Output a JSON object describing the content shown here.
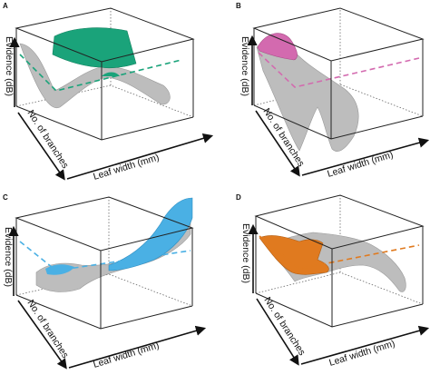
{
  "panels": [
    {
      "id": "A",
      "letter": "A",
      "color": "#1aa37a",
      "ylabel": "Evidence (dB)",
      "zlabel": "No. of branches",
      "xlabel": "Leaf width (mm)"
    },
    {
      "id": "B",
      "letter": "B",
      "color": "#d36aaf",
      "ylabel": "Evidence (dB)",
      "zlabel": "No. of branches",
      "xlabel": "Leaf width (mm)"
    },
    {
      "id": "C",
      "letter": "C",
      "color": "#4ab0e4",
      "ylabel": "Evidence (dB)",
      "zlabel": "No. of branches",
      "xlabel": "Leaf width (mm)"
    },
    {
      "id": "D",
      "letter": "D",
      "color": "#e07a1f",
      "ylabel": "Evidence (dB)",
      "zlabel": "No. of branches",
      "xlabel": "Leaf width (mm)"
    }
  ]
}
